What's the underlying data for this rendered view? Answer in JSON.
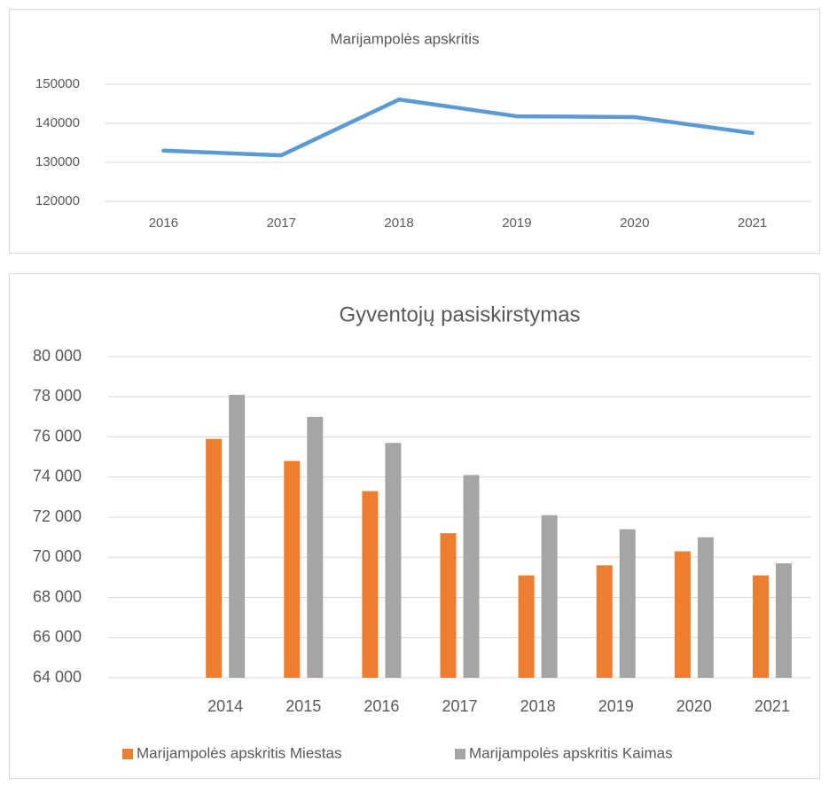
{
  "chart_data": [
    {
      "type": "line",
      "title": "Marijampolės apskritis",
      "categories": [
        "2016",
        "2017",
        "2018",
        "2019",
        "2020",
        "2021"
      ],
      "series": [
        {
          "name": "Marijampolės apskritis",
          "color": "#5b9bd5",
          "values": [
            133000,
            131800,
            146100,
            141800,
            141600,
            137500
          ]
        }
      ],
      "ylim": [
        120000,
        150000
      ],
      "yticks": [
        120000,
        130000,
        140000,
        150000
      ],
      "grid": true
    },
    {
      "type": "bar",
      "title": "Gyventojų pasiskirstymas",
      "categories": [
        null,
        "2014",
        "2015",
        "2016",
        "2017",
        "2018",
        "2019",
        "2020",
        "2021"
      ],
      "series": [
        {
          "name": "Marijampolės apskritis Miestas",
          "color": "#ed7d31",
          "values": [
            null,
            75900,
            74800,
            73300,
            71200,
            69100,
            69600,
            70300,
            69100
          ]
        },
        {
          "name": "Marijampolės apskritis Kaimas",
          "color": "#a5a5a5",
          "values": [
            null,
            78100,
            77000,
            75700,
            74100,
            72100,
            71400,
            71000,
            69700
          ]
        }
      ],
      "ylim": [
        64000,
        80000
      ],
      "yticks": [
        {
          "value": 64000,
          "label": "64 000"
        },
        {
          "value": 66000,
          "label": "66 000"
        },
        {
          "value": 68000,
          "label": "68 000"
        },
        {
          "value": 70000,
          "label": "70 000"
        },
        {
          "value": 72000,
          "label": "72 000"
        },
        {
          "value": 74000,
          "label": "74 000"
        },
        {
          "value": 76000,
          "label": "76 000"
        },
        {
          "value": 78000,
          "label": "78 000"
        },
        {
          "value": 80000,
          "label": "80 000"
        }
      ],
      "grid": true,
      "legend": "bottom"
    }
  ]
}
